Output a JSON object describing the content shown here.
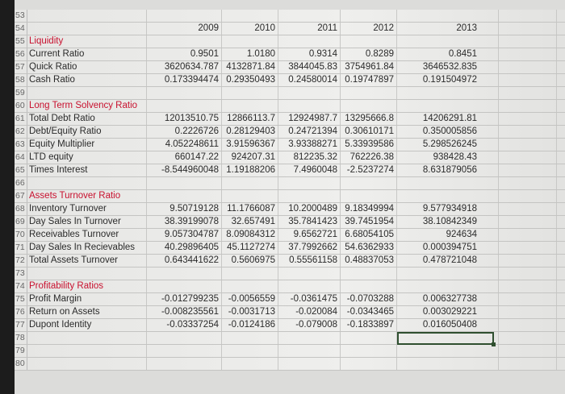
{
  "years": [
    "2009",
    "2010",
    "2011",
    "2012",
    "2013"
  ],
  "rows": [
    {
      "n": "53",
      "label": "",
      "head": false,
      "values": []
    },
    {
      "n": "54",
      "label": "",
      "head": false,
      "values": [],
      "years": true
    },
    {
      "n": "55",
      "label": "Liquidity",
      "head": true,
      "values": []
    },
    {
      "n": "56",
      "label": "Current Ratio",
      "head": false,
      "values": [
        "0.9501",
        "1.0180",
        "0.9314",
        "0.8289",
        "0.8451"
      ]
    },
    {
      "n": "57",
      "label": "Quick Ratio",
      "head": false,
      "values": [
        "3620634.787",
        "4132871.84",
        "3844045.83",
        "3754961.84",
        "3646532.835"
      ]
    },
    {
      "n": "58",
      "label": "Cash Ratio",
      "head": false,
      "values": [
        "0.173394474",
        "0.29350493",
        "0.24580014",
        "0.19747897",
        "0.191504972"
      ]
    },
    {
      "n": "59",
      "label": "",
      "head": false,
      "values": []
    },
    {
      "n": "60",
      "label": "Long Term Solvency Ratio",
      "head": true,
      "values": []
    },
    {
      "n": "61",
      "label": "Total Debt Ratio",
      "head": false,
      "values": [
        "12013510.75",
        "12866113.7",
        "12924987.7",
        "13295666.8",
        "14206291.81"
      ]
    },
    {
      "n": "62",
      "label": "Debt/Equity Ratio",
      "head": false,
      "values": [
        "0.2226726",
        "0.28129403",
        "0.24721394",
        "0.30610171",
        "0.350005856"
      ]
    },
    {
      "n": "63",
      "label": "Equity Multiplier",
      "head": false,
      "values": [
        "4.052248611",
        "3.91596367",
        "3.93388271",
        "5.33939586",
        "5.298526245"
      ]
    },
    {
      "n": "64",
      "label": "LTD equity",
      "head": false,
      "values": [
        "660147.22",
        "924207.31",
        "812235.32",
        "762226.38",
        "938428.43"
      ]
    },
    {
      "n": "65",
      "label": "Times Interest",
      "head": false,
      "values": [
        "-8.544960048",
        "1.19188206",
        "7.4960048",
        "-2.5237274",
        "8.631879056"
      ]
    },
    {
      "n": "66",
      "label": "",
      "head": false,
      "values": []
    },
    {
      "n": "67",
      "label": "Assets Turnover Ratio",
      "head": true,
      "values": []
    },
    {
      "n": "68",
      "label": "Inventory Turnover",
      "head": false,
      "values": [
        "9.50719128",
        "11.1766087",
        "10.2000489",
        "9.18349994",
        "9.577934918"
      ]
    },
    {
      "n": "69",
      "label": "Day Sales In Turnover",
      "head": false,
      "values": [
        "38.39199078",
        "32.657491",
        "35.7841423",
        "39.7451954",
        "38.10842349"
      ]
    },
    {
      "n": "70",
      "label": "Receivables Turnover",
      "head": false,
      "values": [
        "9.057304787",
        "8.09084312",
        "9.6562721",
        "6.68054105",
        "924634"
      ]
    },
    {
      "n": "71",
      "label": "Day Sales In Recievables",
      "head": false,
      "values": [
        "40.29896405",
        "45.1127274",
        "37.7992662",
        "54.6362933",
        "0.000394751"
      ]
    },
    {
      "n": "72",
      "label": "Total Assets Turnover",
      "head": false,
      "values": [
        "0.643441622",
        "0.5606975",
        "0.55561158",
        "0.48837053",
        "0.478721048"
      ]
    },
    {
      "n": "73",
      "label": "",
      "head": false,
      "values": []
    },
    {
      "n": "74",
      "label": "Profitability Ratios",
      "head": true,
      "values": []
    },
    {
      "n": "75",
      "label": "Profit Margin",
      "head": false,
      "values": [
        "-0.012799235",
        "-0.0056559",
        "-0.0361475",
        "-0.0703288",
        "0.006327738"
      ]
    },
    {
      "n": "76",
      "label": "Return on Assets",
      "head": false,
      "values": [
        "-0.008235561",
        "-0.0031713",
        "-0.020084",
        "-0.0343465",
        "0.003029221"
      ]
    },
    {
      "n": "77",
      "label": "Dupont Identity",
      "head": false,
      "values": [
        "-0.03337254",
        "-0.0124186",
        "-0.079008",
        "-0.1833897",
        "0.016050408"
      ]
    },
    {
      "n": "78",
      "label": "",
      "head": false,
      "values": [],
      "selected": true
    },
    {
      "n": "79",
      "label": "",
      "head": false,
      "values": []
    },
    {
      "n": "80",
      "label": "",
      "head": false,
      "values": []
    }
  ]
}
